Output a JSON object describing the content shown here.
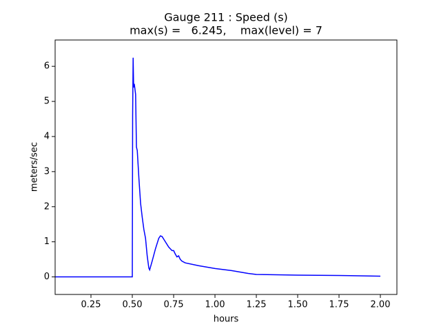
{
  "chart_data": {
    "type": "line",
    "title": "Gauge 211 : Speed (s)",
    "subtitle": "max(s) =   6.245,    max(level) = 7",
    "x_label": "hours",
    "y_label": "meters/sec",
    "color": "#0000ff",
    "x": [
      0.0333,
      0.5,
      0.502,
      0.505,
      0.508,
      0.512,
      0.52,
      0.525,
      0.53,
      0.54,
      0.55,
      0.56,
      0.57,
      0.58,
      0.59,
      0.6,
      0.605,
      0.62,
      0.64,
      0.66,
      0.67,
      0.68,
      0.7,
      0.72,
      0.74,
      0.75,
      0.76,
      0.77,
      0.78,
      0.79,
      0.8,
      0.82,
      0.9,
      1.0,
      1.1,
      1.2,
      1.25,
      1.5,
      1.75,
      2.0
    ],
    "values": [
      0,
      0,
      4.6,
      6.245,
      5.4,
      5.5,
      5.2,
      3.7,
      3.6,
      2.8,
      2.1,
      1.7,
      1.35,
      1.1,
      0.6,
      0.25,
      0.2,
      0.45,
      0.8,
      1.1,
      1.17,
      1.15,
      1.0,
      0.85,
      0.75,
      0.75,
      0.65,
      0.57,
      0.6,
      0.5,
      0.45,
      0.4,
      0.32,
      0.24,
      0.18,
      0.1,
      0.07,
      0.05,
      0.04,
      0.02
    ],
    "xlim": [
      0.0333,
      2.1
    ],
    "ylim": [
      -0.5,
      6.75
    ],
    "xticks": [
      0.25,
      {
        "value": 0.5,
        "label": "0.50"
      },
      0.75,
      {
        "value": 1.0,
        "label": "1.00"
      },
      1.25,
      {
        "value": 1.5,
        "label": "1.50"
      },
      1.75,
      {
        "value": 2.0,
        "label": "2.00"
      }
    ],
    "yticks": [
      0,
      1,
      2,
      3,
      4,
      5,
      6
    ]
  }
}
